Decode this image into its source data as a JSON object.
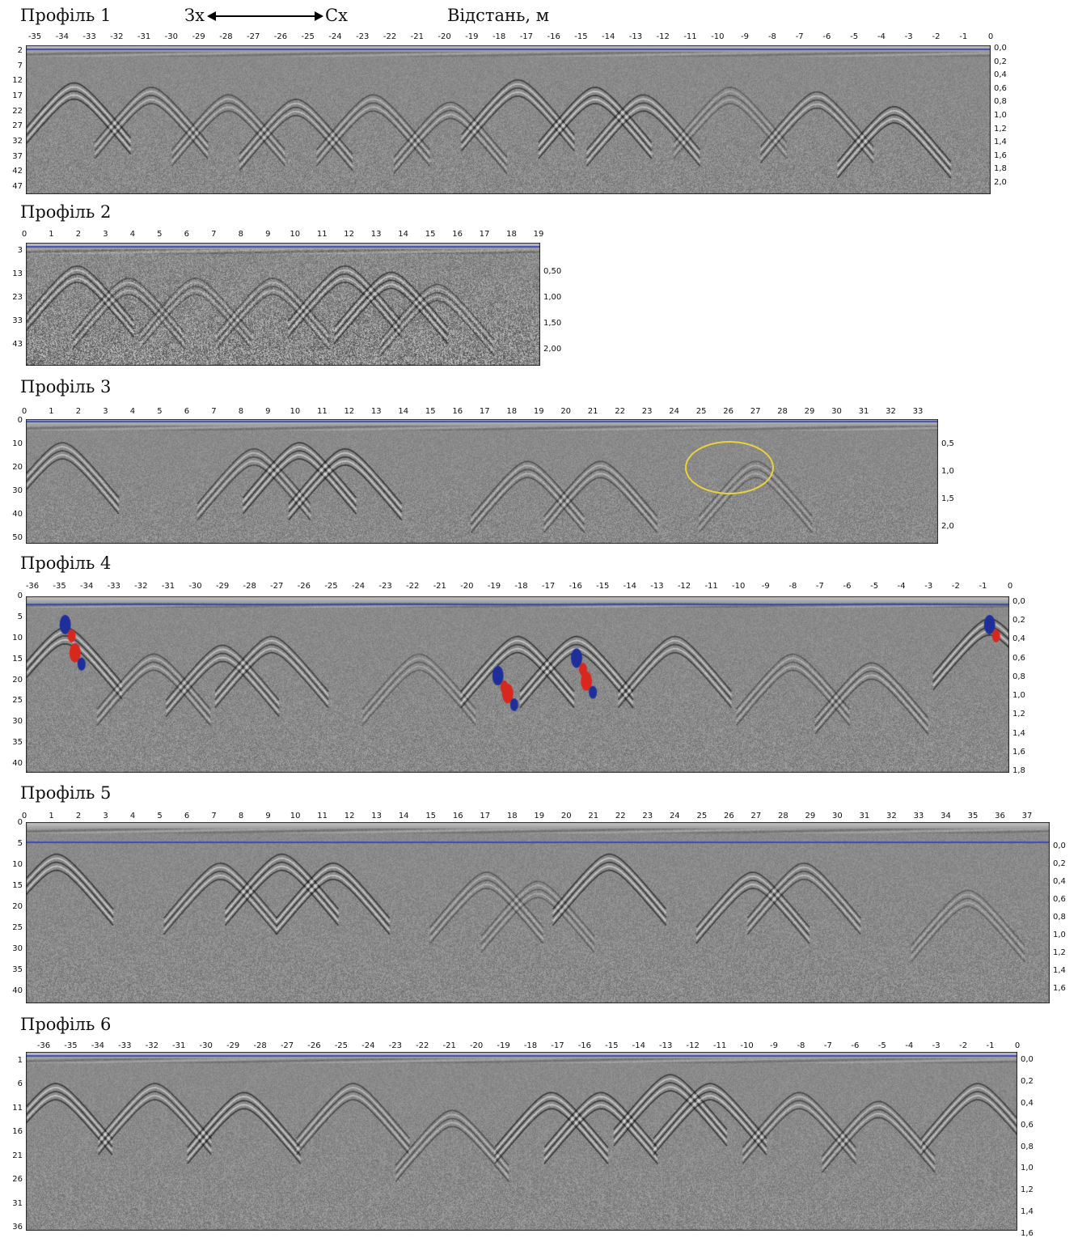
{
  "header": {
    "west": "Зх",
    "east": "Сх",
    "distance": "Відстань, м"
  },
  "profiles": [
    {
      "title": "Профіль 1",
      "x_ticks": [
        "-35",
        "-34",
        "-33",
        "-32",
        "-31",
        "-30",
        "-29",
        "-28",
        "-27",
        "-26",
        "-25",
        "-24",
        "-23",
        "-22",
        "-21",
        "-20",
        "-19",
        "-18",
        "-17",
        "-16",
        "-15",
        "-14",
        "-13",
        "-12",
        "-11",
        "-10",
        "-9",
        "-8",
        "-7",
        "-6",
        "-5",
        "-4",
        "-3",
        "-2",
        "-1",
        "0"
      ],
      "y_left": [
        "2",
        "7",
        "12",
        "17",
        "22",
        "27",
        "32",
        "37",
        "42",
        "47"
      ],
      "y_right": [
        "0,0",
        "0,2",
        "0,4",
        "0,6",
        "0,8",
        "1,0",
        "1,2",
        "1,4",
        "1,6",
        "1,8",
        "2,0"
      ]
    },
    {
      "title": "Профіль 2",
      "x_ticks": [
        "0",
        "1",
        "2",
        "3",
        "4",
        "5",
        "6",
        "7",
        "8",
        "9",
        "10",
        "11",
        "12",
        "13",
        "14",
        "15",
        "16",
        "17",
        "18",
        "19"
      ],
      "y_left": [
        "3",
        "13",
        "23",
        "33",
        "43"
      ],
      "y_right": [
        "0,50",
        "1,00",
        "1,50",
        "2,00"
      ]
    },
    {
      "title": "Профіль 3",
      "x_ticks": [
        "0",
        "1",
        "2",
        "3",
        "4",
        "5",
        "6",
        "7",
        "8",
        "9",
        "10",
        "11",
        "12",
        "13",
        "14",
        "15",
        "16",
        "17",
        "18",
        "19",
        "20",
        "21",
        "22",
        "23",
        "24",
        "25",
        "26",
        "27",
        "28",
        "29",
        "30",
        "31",
        "32",
        "33"
      ],
      "y_left": [
        "0",
        "10",
        "20",
        "30",
        "40",
        "50"
      ],
      "y_right": [
        "0,5",
        "1,0",
        "1,5",
        "2,0"
      ]
    },
    {
      "title": "Профіль 4",
      "x_ticks": [
        "-36",
        "-35",
        "-34",
        "-33",
        "-32",
        "-31",
        "-30",
        "-29",
        "-28",
        "-27",
        "-26",
        "-25",
        "-24",
        "-23",
        "-22",
        "-21",
        "-20",
        "-19",
        "-18",
        "-17",
        "-16",
        "-15",
        "-14",
        "-13",
        "-12",
        "-11",
        "-10",
        "-9",
        "-8",
        "-7",
        "-6",
        "-5",
        "-4",
        "-3",
        "-2",
        "-1",
        "0"
      ],
      "y_left": [
        "0",
        "5",
        "10",
        "15",
        "20",
        "25",
        "30",
        "35",
        "40"
      ],
      "y_right": [
        "0,0",
        "0,2",
        "0,4",
        "0,6",
        "0,8",
        "1,0",
        "1,2",
        "1,4",
        "1,6",
        "1,8"
      ]
    },
    {
      "title": "Профіль 5",
      "x_ticks": [
        "0",
        "1",
        "2",
        "3",
        "4",
        "5",
        "6",
        "7",
        "8",
        "9",
        "10",
        "11",
        "12",
        "13",
        "14",
        "15",
        "16",
        "17",
        "18",
        "19",
        "20",
        "21",
        "22",
        "23",
        "24",
        "25",
        "26",
        "27",
        "28",
        "29",
        "30",
        "31",
        "32",
        "33",
        "34",
        "35",
        "36",
        "37"
      ],
      "y_left": [
        "0",
        "5",
        "10",
        "15",
        "20",
        "25",
        "30",
        "35",
        "40"
      ],
      "y_right": [
        "0,0",
        "0,2",
        "0,4",
        "0,6",
        "0,8",
        "1,0",
        "1,2",
        "1,4",
        "1,6"
      ]
    },
    {
      "title": "Профіль 6",
      "x_ticks": [
        "-36",
        "-35",
        "-34",
        "-33",
        "-32",
        "-31",
        "-30",
        "-29",
        "-28",
        "-27",
        "-26",
        "-25",
        "-24",
        "-23",
        "-22",
        "-21",
        "-20",
        "-19",
        "-18",
        "-17",
        "-16",
        "-15",
        "-14",
        "-13",
        "-12",
        "-11",
        "-10",
        "-9",
        "-8",
        "-7",
        "-6",
        "-5",
        "-4",
        "-3",
        "-2",
        "-1",
        "0"
      ],
      "y_left": [
        "1",
        "6",
        "11",
        "16",
        "21",
        "26",
        "31",
        "36"
      ],
      "y_right": [
        "0,0",
        "0,2",
        "0,4",
        "0,6",
        "0,8",
        "1,0",
        "1,2",
        "1,4",
        "1,6"
      ]
    }
  ],
  "colors": {
    "background_gray": "#8a8a8a",
    "surface_line": "#3b4bb0",
    "highlight_ring": "#e8d23c",
    "anomaly_red": "#d8281e",
    "anomaly_blue": "#1e2f9c"
  }
}
